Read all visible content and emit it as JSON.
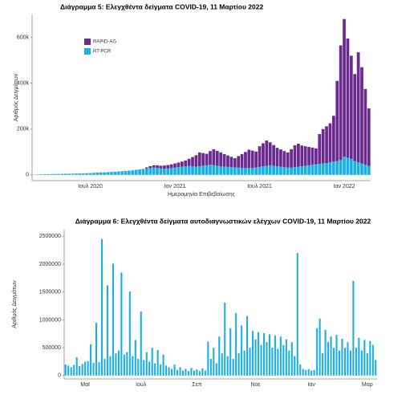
{
  "chart_data": [
    {
      "type": "stacked-bar",
      "title": "Διάγραμμα 5: Ελεγχθέντα δείγματα COVID-19, 11 Μαρτίου 2022",
      "xlabel": "Ημερομηνία Επιβεβαίωσης",
      "ylabel": "Αριθμός Δειγμάτων",
      "categories": [
        null,
        null,
        null,
        null,
        null,
        null,
        null,
        null,
        null,
        null,
        null,
        null,
        null,
        null,
        null,
        null,
        "Ιουλ 2020",
        null,
        null,
        null,
        null,
        null,
        null,
        null,
        null,
        null,
        null,
        null,
        null,
        null,
        null,
        null,
        null,
        null,
        null,
        null,
        null,
        null,
        null,
        null,
        "Ιαν 2021",
        null,
        null,
        null,
        null,
        null,
        null,
        null,
        null,
        null,
        null,
        null,
        null,
        null,
        null,
        null,
        null,
        null,
        null,
        null,
        null,
        null,
        null,
        null,
        "Ιουλ 2021",
        null,
        null,
        null,
        null,
        null,
        null,
        null,
        null,
        null,
        null,
        null,
        null,
        null,
        null,
        null,
        null,
        null,
        null,
        null,
        null,
        null,
        null,
        null,
        "Ιαν 2022",
        null,
        null,
        null,
        null,
        null,
        null,
        null
      ],
      "series": [
        {
          "name": "RAPID-AG",
          "color": "#6a2a8e",
          "values": [
            0,
            0,
            0,
            0,
            0,
            0,
            0,
            0,
            0,
            0,
            0,
            0,
            0,
            0,
            0,
            0,
            0,
            0,
            0,
            0,
            0,
            0,
            0,
            0,
            0,
            0,
            0,
            0,
            0,
            0,
            0,
            0,
            5000,
            8000,
            10000,
            12000,
            12000,
            14000,
            15000,
            16000,
            18000,
            20000,
            22000,
            25000,
            30000,
            40000,
            50000,
            60000,
            55000,
            50000,
            60000,
            70000,
            65000,
            60000,
            55000,
            50000,
            45000,
            40000,
            50000,
            60000,
            70000,
            80000,
            75000,
            70000,
            90000,
            100000,
            110000,
            100000,
            90000,
            80000,
            75000,
            70000,
            65000,
            80000,
            95000,
            100000,
            90000,
            85000,
            80000,
            75000,
            70000,
            130000,
            150000,
            160000,
            170000,
            200000,
            350000,
            500000,
            600000,
            520000,
            450000,
            380000,
            480000,
            420000,
            330000,
            250000
          ]
        },
        {
          "name": "RT-PCR",
          "color": "#1ab0e6",
          "values": [
            1000,
            2000,
            2500,
            3000,
            3000,
            3500,
            4000,
            4000,
            4500,
            5000,
            5000,
            5500,
            6000,
            6500,
            7000,
            7500,
            8000,
            9000,
            10000,
            11000,
            11000,
            12000,
            13000,
            14000,
            15000,
            16000,
            17000,
            18000,
            20000,
            22000,
            24000,
            26000,
            28000,
            30000,
            32000,
            30000,
            28000,
            27000,
            28000,
            30000,
            32000,
            34000,
            36000,
            38000,
            40000,
            38000,
            36000,
            38000,
            40000,
            42000,
            44000,
            42000,
            40000,
            38000,
            36000,
            35000,
            34000,
            33000,
            32000,
            31000,
            30000,
            30000,
            31000,
            32000,
            35000,
            38000,
            40000,
            42000,
            40000,
            38000,
            36000,
            34000,
            33000,
            32000,
            34000,
            36000,
            38000,
            40000,
            42000,
            44000,
            46000,
            48000,
            50000,
            52000,
            55000,
            58000,
            60000,
            65000,
            80000,
            75000,
            70000,
            60000,
            55000,
            50000,
            45000,
            40000
          ]
        }
      ],
      "ylim": [
        -25000,
        700000
      ],
      "yticks": [
        0,
        {
          "value": 200000,
          "label": "200k"
        },
        {
          "value": 400000,
          "label": "400k"
        },
        {
          "value": 600000,
          "label": "600k"
        }
      ],
      "legend": "top-left",
      "grid": false
    },
    {
      "type": "bar",
      "title": "Διάγραμμα 6: Ελεγχθέντα δείγματα αυτοδιαγνωστικών ελέγχων COVID-19, 11 Μαρτίου 2022",
      "ylabel": "Αριθμός Δειγμάτων",
      "categories": [
        null,
        null,
        null,
        null,
        null,
        null,
        null,
        "Μαϊ",
        null,
        null,
        null,
        null,
        null,
        null,
        null,
        null,
        null,
        null,
        null,
        null,
        null,
        null,
        null,
        null,
        null,
        null,
        null,
        "Ιουλ",
        null,
        null,
        null,
        null,
        null,
        null,
        null,
        null,
        null,
        null,
        null,
        null,
        null,
        null,
        null,
        null,
        null,
        null,
        null,
        "Σεπ",
        null,
        null,
        null,
        null,
        null,
        null,
        null,
        null,
        null,
        null,
        null,
        null,
        null,
        null,
        null,
        null,
        null,
        null,
        null,
        null,
        "Νοε",
        null,
        null,
        null,
        null,
        null,
        null,
        null,
        null,
        null,
        null,
        null,
        null,
        null,
        null,
        null,
        null,
        null,
        null,
        null,
        "Ιαν",
        null,
        null,
        null,
        null,
        null,
        null,
        null,
        null,
        null,
        null,
        null,
        null,
        null,
        null,
        null,
        null,
        null,
        null,
        null,
        "Μαρ",
        null,
        null,
        null
      ],
      "values": [
        200000,
        180000,
        150000,
        190000,
        330000,
        170000,
        210000,
        250000,
        260000,
        560000,
        230000,
        950000,
        240000,
        2450000,
        300000,
        1620000,
        350000,
        2010000,
        400000,
        450000,
        1850000,
        380000,
        420000,
        1510000,
        350000,
        640000,
        300000,
        1150000,
        280000,
        420000,
        250000,
        500000,
        220000,
        460000,
        200000,
        380000,
        180000,
        150000,
        120000,
        200000,
        100000,
        150000,
        90000,
        120000,
        80000,
        140000,
        90000,
        110000,
        80000,
        130000,
        90000,
        610000,
        300000,
        500000,
        220000,
        700000,
        400000,
        1310000,
        350000,
        850000,
        300000,
        1120000,
        400000,
        900000,
        450000,
        1070000,
        500000,
        800000,
        650000,
        780000,
        550000,
        760000,
        600000,
        740000,
        500000,
        720000,
        480000,
        700000,
        550000,
        650000,
        450000,
        600000,
        350000,
        2200000,
        200000,
        120000,
        100000,
        110000,
        90000,
        100000,
        850000,
        1020000,
        400000,
        820000,
        600000,
        700000,
        500000,
        730000,
        450000,
        660000,
        500000,
        600000,
        450000,
        1700000,
        500000,
        680000,
        450000,
        640000,
        400000,
        620000,
        550000,
        280000
      ],
      "color": "#1ab0e6",
      "ylim": [
        -60000,
        2620000
      ],
      "yticks": [
        0,
        500000,
        1000000,
        1500000,
        2000000,
        2500000
      ],
      "grid": false
    }
  ]
}
